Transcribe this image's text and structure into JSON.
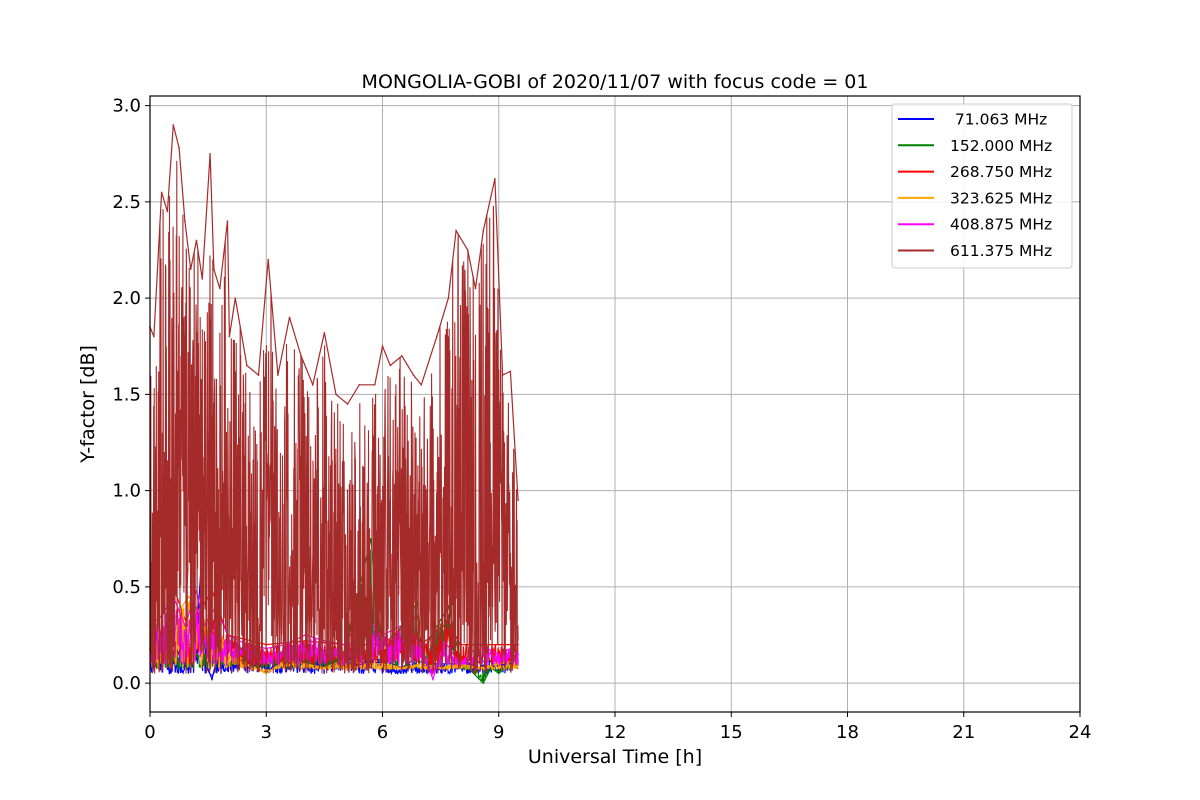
{
  "chart_data": {
    "type": "line",
    "title": "MONGOLIA-GOBI of 2020/11/07 with focus code = 01",
    "xlabel": "Universal Time [h]",
    "ylabel": "Y-factor [dB]",
    "xlim": [
      0,
      24
    ],
    "ylim": [
      -0.15,
      3.05
    ],
    "x_ticks": [
      0,
      3,
      6,
      9,
      12,
      15,
      18,
      21,
      24
    ],
    "x_tick_labels": [
      "0",
      "3",
      "6",
      "9",
      "12",
      "15",
      "18",
      "21",
      "24"
    ],
    "y_ticks": [
      0.0,
      0.5,
      1.0,
      1.5,
      2.0,
      2.5,
      3.0
    ],
    "y_tick_labels": [
      "0.0",
      "0.5",
      "1.0",
      "1.5",
      "2.0",
      "2.5",
      "3.0"
    ],
    "grid": true,
    "legend_position": "top-right",
    "series": [
      {
        "name": " 71.063 MHz",
        "color": "#0000ff",
        "x": [
          0.0,
          0.25,
          0.45,
          0.5,
          0.65,
          0.8,
          1.0,
          1.2,
          1.3,
          1.45,
          1.6,
          1.75,
          1.9,
          2.0,
          2.2,
          2.4,
          3.0,
          4.0,
          5.0,
          6.0,
          6.5,
          6.8,
          7.2,
          8.0,
          9.0,
          9.5
        ],
        "values": [
          0.18,
          0.2,
          0.16,
          0.05,
          0.2,
          0.12,
          0.08,
          0.25,
          0.55,
          0.1,
          0.02,
          0.15,
          0.08,
          0.2,
          0.12,
          0.15,
          0.12,
          0.15,
          0.14,
          0.12,
          0.08,
          0.12,
          0.1,
          0.1,
          0.12,
          0.15
        ]
      },
      {
        "name": "152.000 MHz",
        "color": "#008000",
        "x": [
          0.0,
          0.5,
          1.0,
          1.5,
          2.0,
          3.0,
          4.0,
          5.0,
          5.7,
          6.0,
          6.9,
          7.0,
          7.7,
          8.0,
          8.6,
          8.8,
          9.0,
          9.3,
          9.5
        ],
        "values": [
          0.2,
          0.22,
          0.2,
          0.18,
          0.2,
          0.15,
          0.18,
          0.16,
          0.75,
          0.15,
          0.42,
          0.15,
          0.4,
          0.12,
          0.0,
          0.08,
          0.05,
          0.1,
          0.12
        ]
      },
      {
        "name": "268.750 MHz",
        "color": "#ff0000",
        "x": [
          0.0,
          0.5,
          0.6,
          1.0,
          1.6,
          2.0,
          3.0,
          4.0,
          5.0,
          6.0,
          6.9,
          7.0,
          7.7,
          8.0,
          9.0,
          9.5
        ],
        "values": [
          0.25,
          0.3,
          0.5,
          0.28,
          0.48,
          0.25,
          0.2,
          0.22,
          0.2,
          0.2,
          0.35,
          0.2,
          0.32,
          0.2,
          0.2,
          0.2
        ]
      },
      {
        "name": "323.625 MHz",
        "color": "#ffa500",
        "x": [
          0.0,
          0.5,
          1.0,
          1.5,
          2.0,
          2.5,
          3.0,
          3.5,
          4.0,
          4.5,
          5.0,
          5.5,
          6.0,
          6.5,
          7.0,
          7.5,
          8.0,
          8.5,
          9.0,
          9.5
        ],
        "values": [
          0.25,
          0.3,
          0.45,
          0.3,
          0.2,
          0.1,
          0.05,
          0.12,
          0.1,
          0.08,
          0.12,
          0.1,
          0.1,
          0.08,
          0.1,
          0.08,
          0.1,
          0.08,
          0.1,
          0.12
        ]
      },
      {
        "name": "408.875 MHz",
        "color": "#ff00ff",
        "x": [
          0.0,
          0.3,
          0.6,
          0.9,
          1.2,
          1.4,
          1.7,
          2.0,
          2.5,
          3.0,
          3.5,
          4.0,
          4.5,
          5.0,
          5.5,
          6.0,
          6.5,
          7.0,
          7.3,
          7.6,
          8.0,
          8.5,
          9.0,
          9.5
        ],
        "values": [
          0.3,
          0.35,
          0.45,
          0.3,
          0.48,
          0.3,
          0.4,
          0.25,
          0.2,
          0.18,
          0.2,
          0.25,
          0.22,
          0.2,
          0.35,
          0.25,
          0.3,
          0.2,
          0.02,
          0.22,
          0.1,
          0.2,
          0.15,
          0.2
        ]
      },
      {
        "name": "611.375 MHz",
        "color": "#a52a2a",
        "x": [
          0.0,
          0.1,
          0.3,
          0.45,
          0.6,
          0.75,
          0.9,
          1.05,
          1.2,
          1.35,
          1.55,
          1.65,
          1.8,
          2.0,
          2.05,
          2.2,
          2.5,
          2.8,
          3.05,
          3.3,
          3.6,
          3.9,
          4.2,
          4.5,
          4.8,
          5.1,
          5.4,
          5.8,
          6.0,
          6.2,
          6.5,
          6.8,
          7.0,
          7.4,
          7.7,
          7.9,
          8.2,
          8.4,
          8.6,
          8.9,
          9.1,
          9.3,
          9.5
        ],
        "values": [
          1.85,
          1.8,
          2.55,
          2.45,
          2.9,
          2.78,
          2.4,
          2.15,
          2.3,
          2.1,
          2.75,
          2.15,
          2.05,
          2.4,
          1.8,
          2.0,
          1.65,
          1.6,
          2.2,
          1.6,
          1.9,
          1.7,
          1.55,
          1.82,
          1.5,
          1.45,
          1.55,
          1.55,
          1.75,
          1.65,
          1.7,
          1.6,
          1.55,
          1.8,
          2.0,
          2.35,
          2.25,
          2.05,
          2.35,
          2.62,
          1.6,
          1.62,
          0.95
        ]
      }
    ]
  }
}
